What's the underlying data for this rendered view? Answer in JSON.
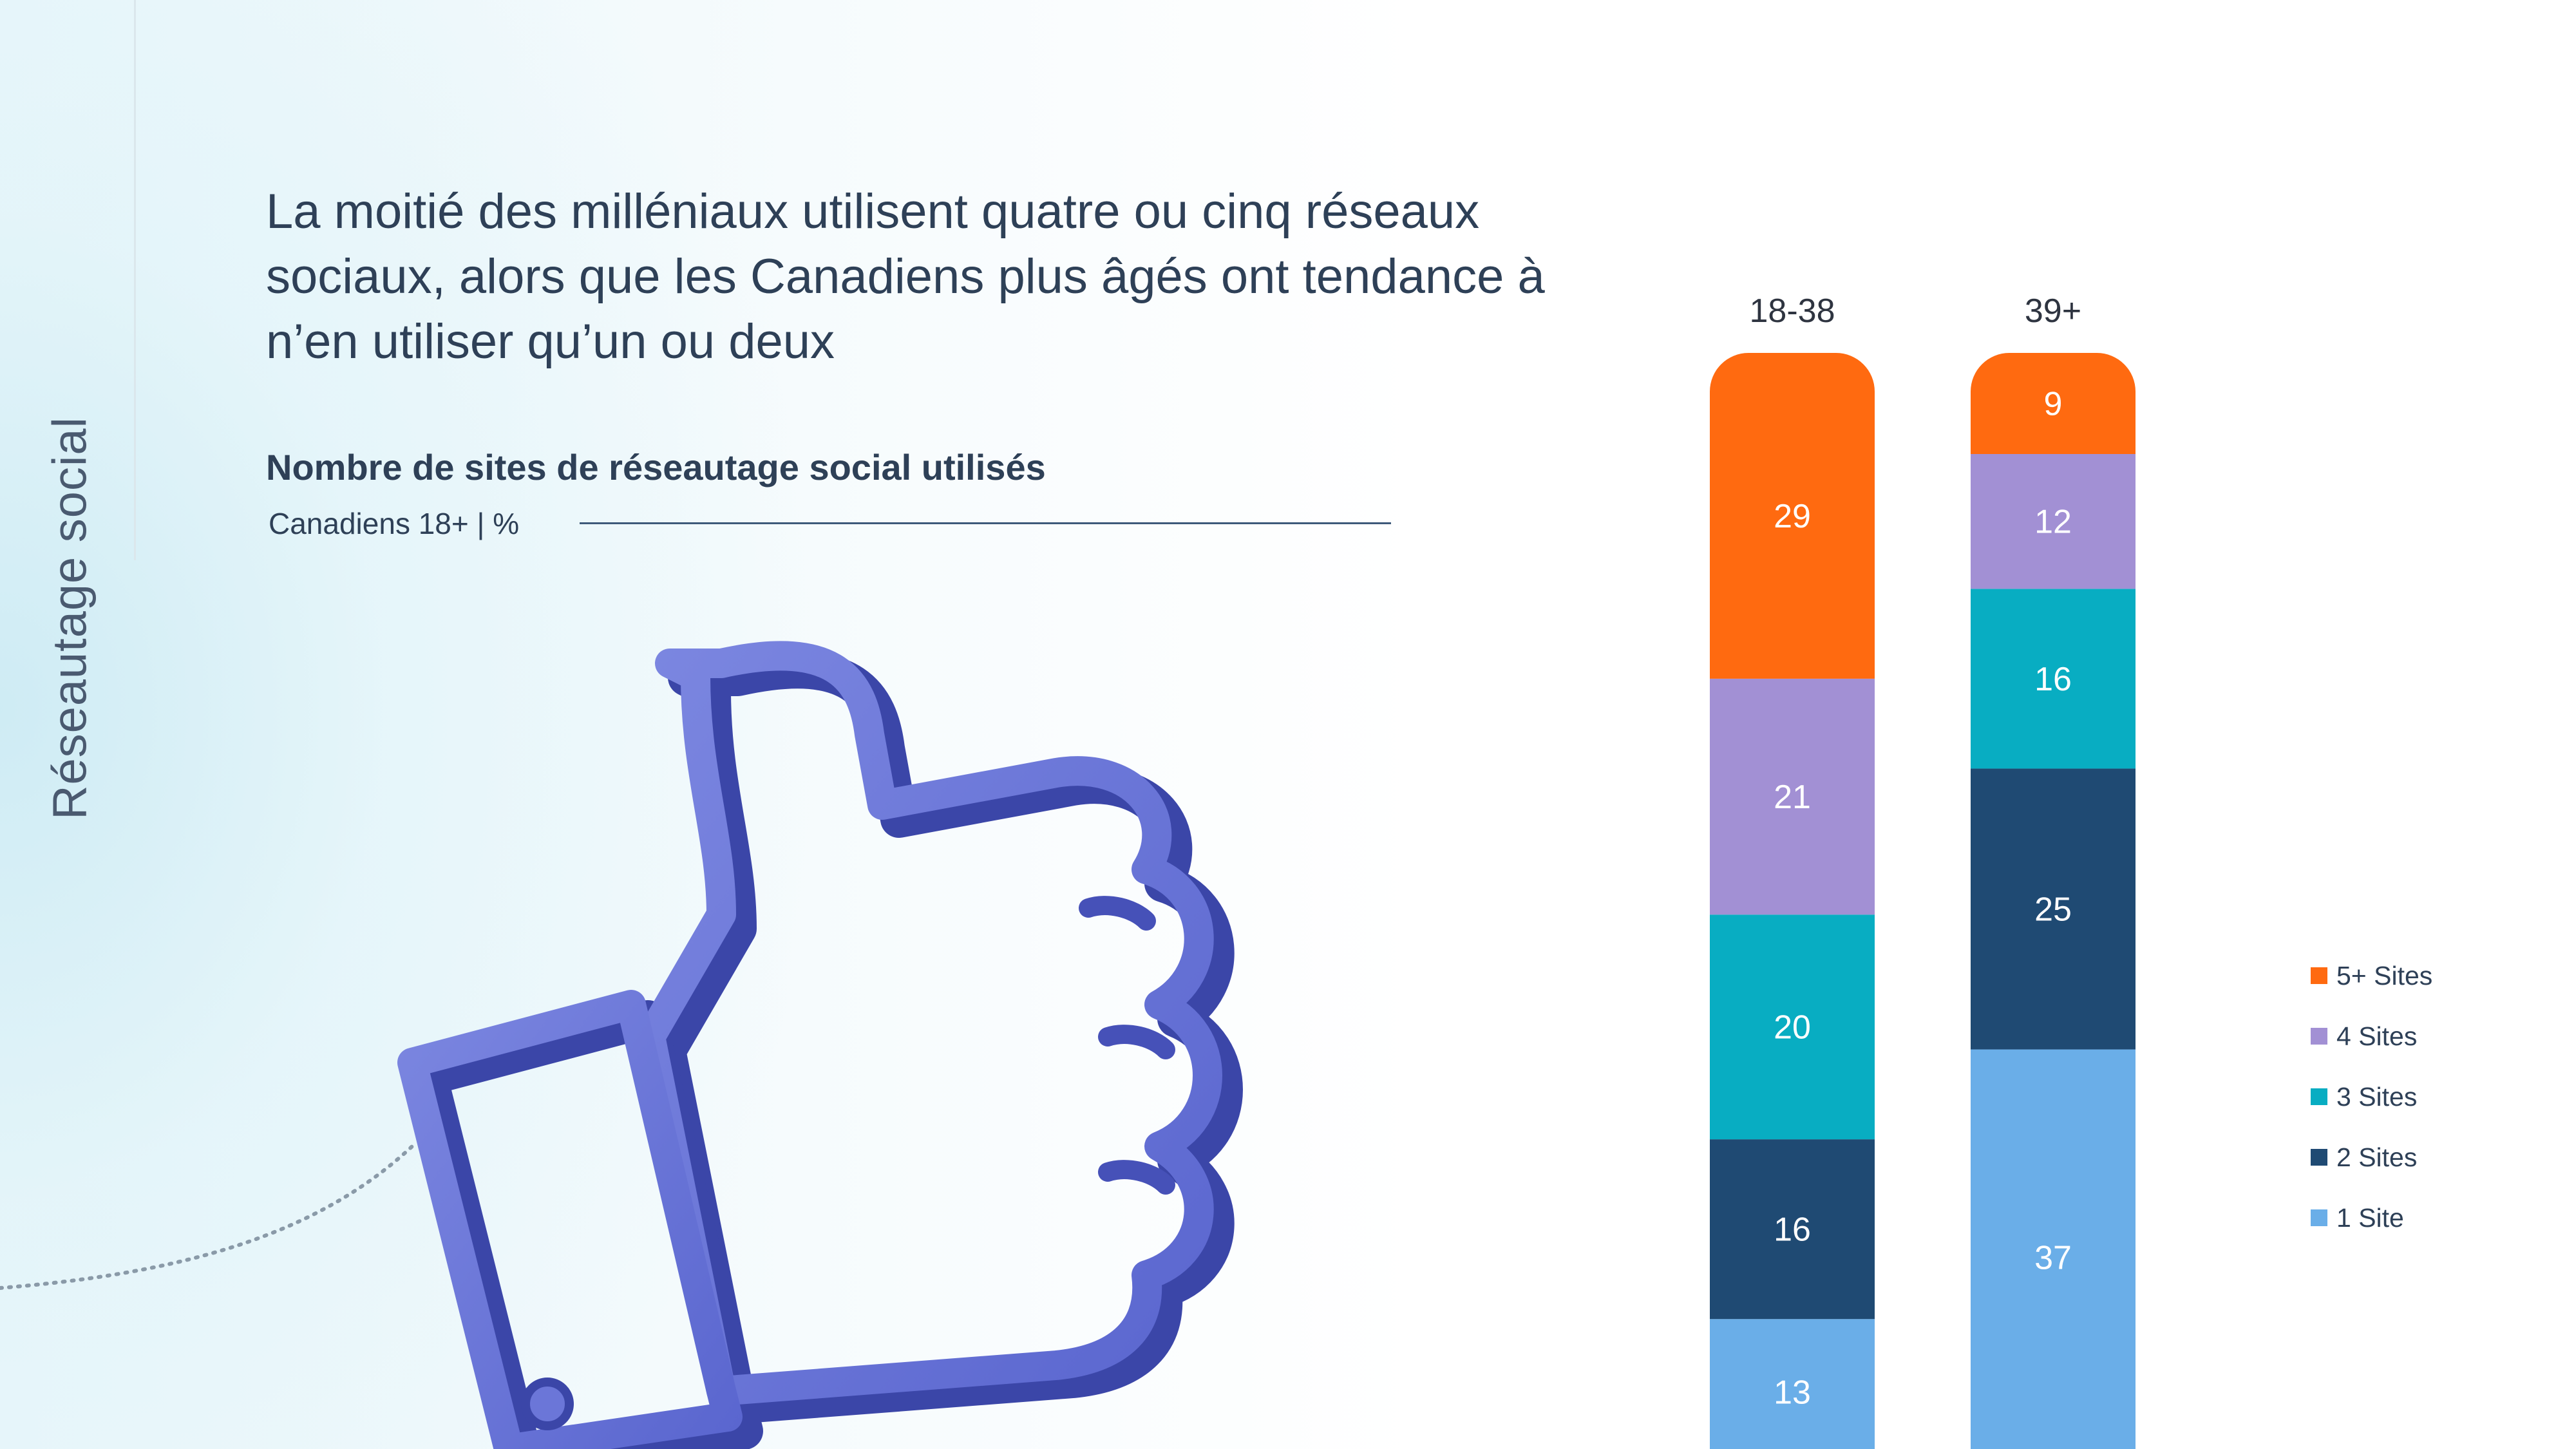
{
  "slide": {
    "section": "Réseautage social",
    "headline": "La moitié des milléniaux utilisent quatre ou cinq réseaux sociaux, alors que les Canadiens plus âgés ont tendance à n’en utiliser qu’un ou deux",
    "subtitle": "Nombre de sites de réseautage social utilisés",
    "note": "Canadiens 18+ | %"
  },
  "chart_data": {
    "type": "bar",
    "stacked": true,
    "categories": [
      "18-38",
      "39+"
    ],
    "series": [
      {
        "name": "1 Site",
        "values": [
          13,
          37
        ],
        "color": "#6aaee8"
      },
      {
        "name": "2 Sites",
        "values": [
          16,
          25
        ],
        "color": "#1f4a73"
      },
      {
        "name": "3 Sites",
        "values": [
          20,
          16
        ],
        "color": "#08adc2"
      },
      {
        "name": "4 Sites",
        "values": [
          21,
          12
        ],
        "color": "#a290d4"
      },
      {
        "name": "5+ Sites",
        "values": [
          29,
          9
        ],
        "color": "#ff6a10"
      }
    ],
    "legend_position": "right",
    "grid": false
  }
}
